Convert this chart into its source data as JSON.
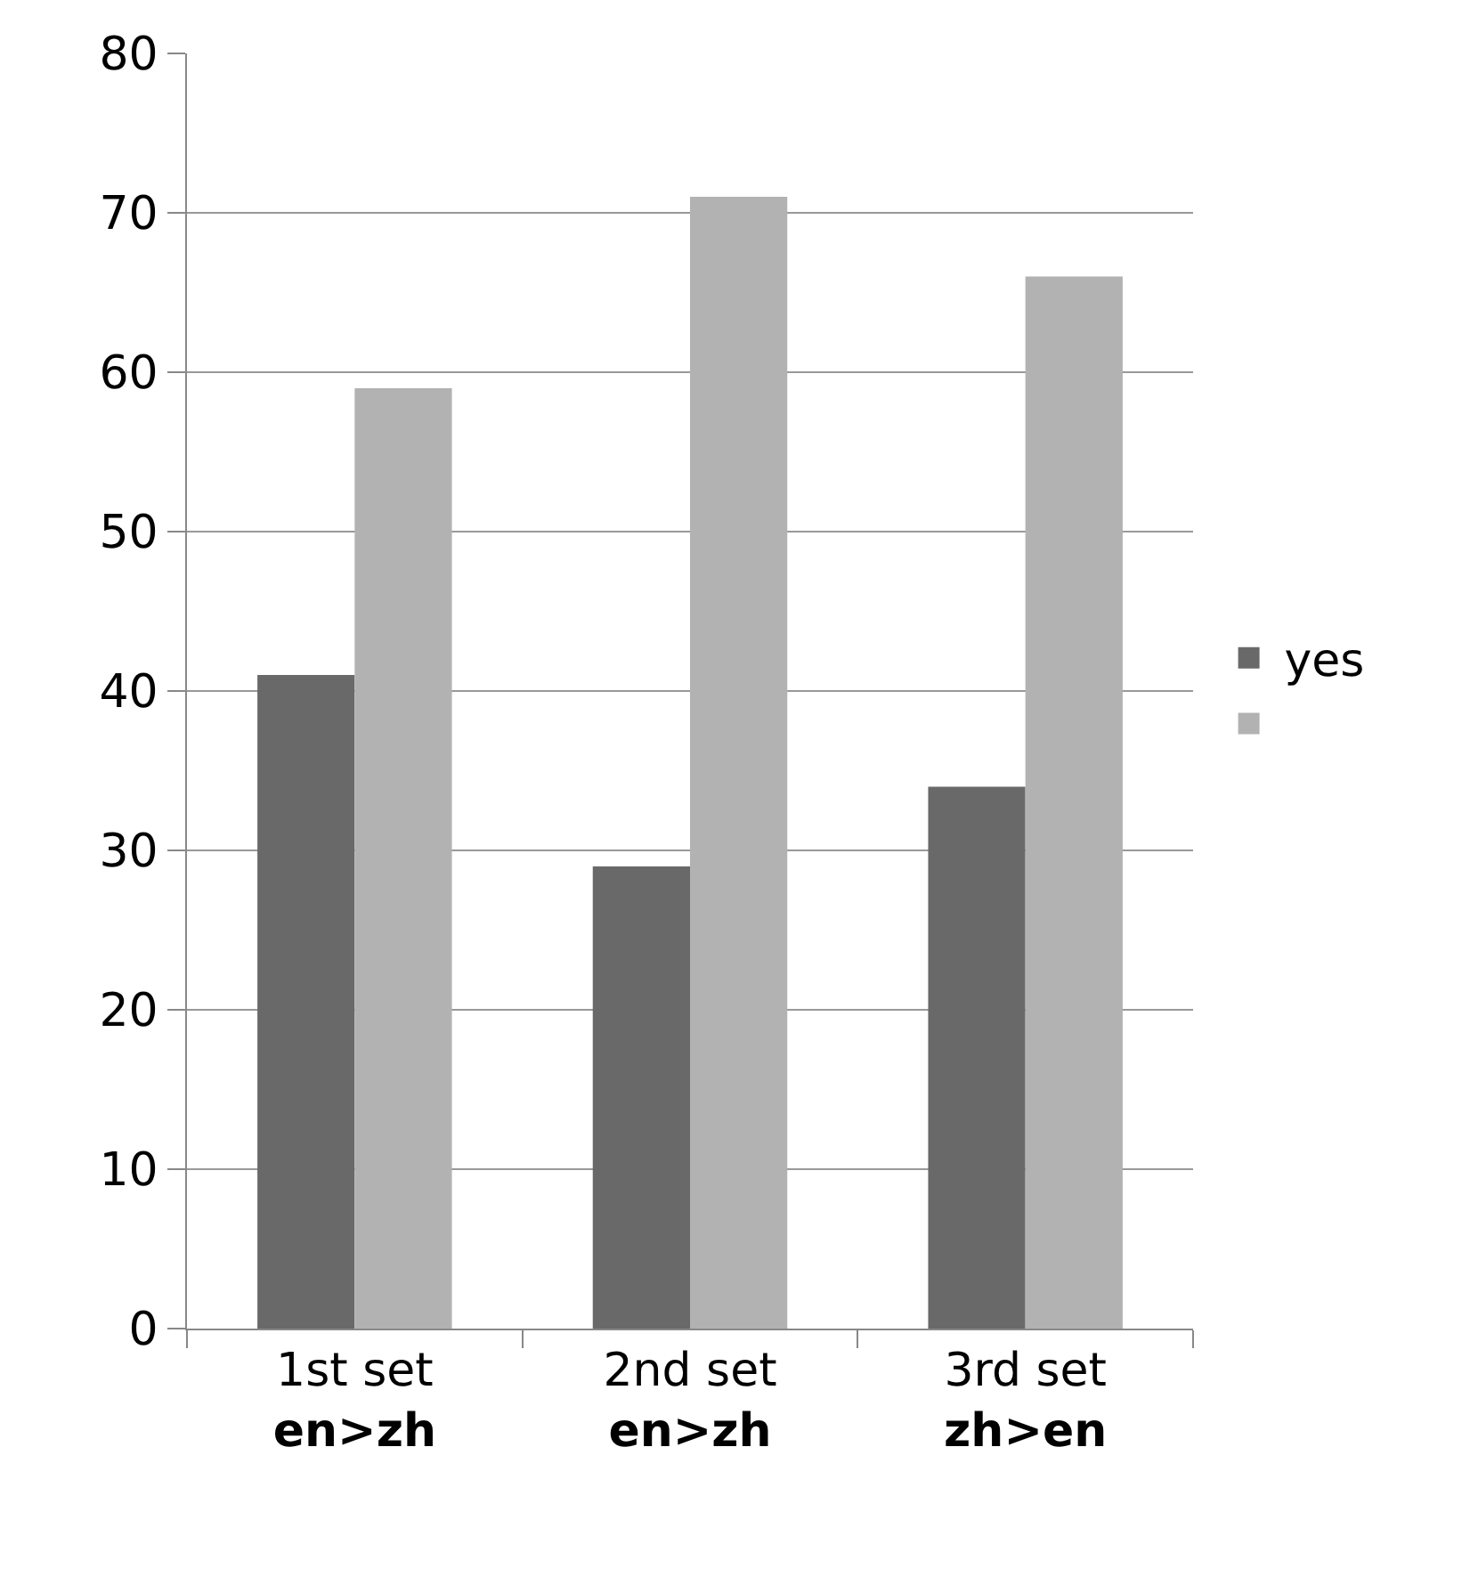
{
  "chart_data": {
    "type": "bar",
    "categories": [
      "1st set\nen>zh",
      "2nd set\nen>zh",
      "3rd set\nzh>en"
    ],
    "series": [
      {
        "name": "yes",
        "color": "#696969",
        "values": [
          41,
          29,
          34
        ]
      },
      {
        "color": "#b2b2b2",
        "values": [
          59,
          71,
          66
        ]
      }
    ],
    "ylim": [
      0,
      80
    ],
    "yticks": [
      0,
      10,
      20,
      30,
      40,
      50,
      60,
      70,
      80
    ],
    "grid": "y",
    "legend": "right"
  }
}
